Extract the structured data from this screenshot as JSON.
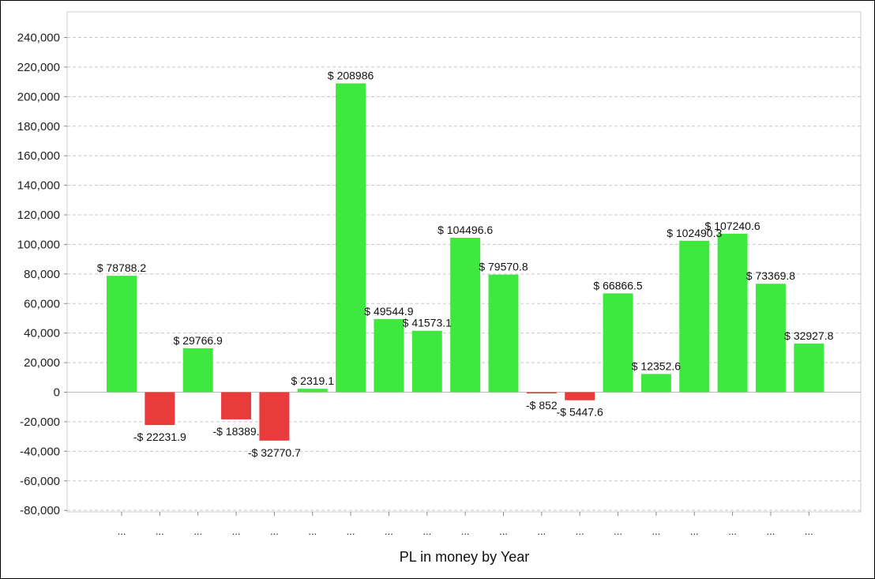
{
  "chart_data": {
    "type": "bar",
    "xlabel": "PL in money by Year",
    "ylabel": "",
    "ylim": [
      -80000,
      250000
    ],
    "yticks": [
      -80000,
      -60000,
      -40000,
      -20000,
      0,
      20000,
      40000,
      60000,
      80000,
      100000,
      120000,
      140000,
      160000,
      180000,
      200000,
      220000,
      240000
    ],
    "ytick_labels": [
      "-80,000",
      "-60,000",
      "-40,000",
      "-20,000",
      "0",
      "20,000",
      "40,000",
      "60,000",
      "80,000",
      "100,000",
      "120,000",
      "140,000",
      "160,000",
      "180,000",
      "200,000",
      "220,000",
      "240,000"
    ],
    "grid": true,
    "categories": [
      "...",
      "...",
      "...",
      "...",
      "...",
      "...",
      "...",
      "...",
      "...",
      "...",
      "...",
      "...",
      "...",
      "...",
      "...",
      "...",
      "...",
      "...",
      "..."
    ],
    "values": [
      78788.2,
      -22231.9,
      29766.9,
      -18389,
      -32770.7,
      2319.1,
      208986,
      49544.9,
      41573.1,
      104496.6,
      79570.8,
      -852,
      -5447.6,
      66866.5,
      12352.6,
      102490.3,
      107240.6,
      73369.8,
      32927.8
    ],
    "data_labels": [
      "$ 78788.2",
      "-$ 22231.9",
      "$ 29766.9",
      "-$ 18389.",
      "-$ 32770.7",
      "$ 2319.1",
      "$ 208986",
      "$ 49544.9",
      "$ 41573.1",
      "$ 104496.6",
      "$ 79570.8",
      "-$ 852",
      "-$ 5447.6",
      "$ 66866.5",
      "$ 12352.6",
      "$ 102490.3",
      "$ 107240.6",
      "$ 73369.8",
      "$ 32927.8"
    ],
    "colors": {
      "positive": "#3fe83f",
      "negative": "#e83c3c"
    }
  }
}
